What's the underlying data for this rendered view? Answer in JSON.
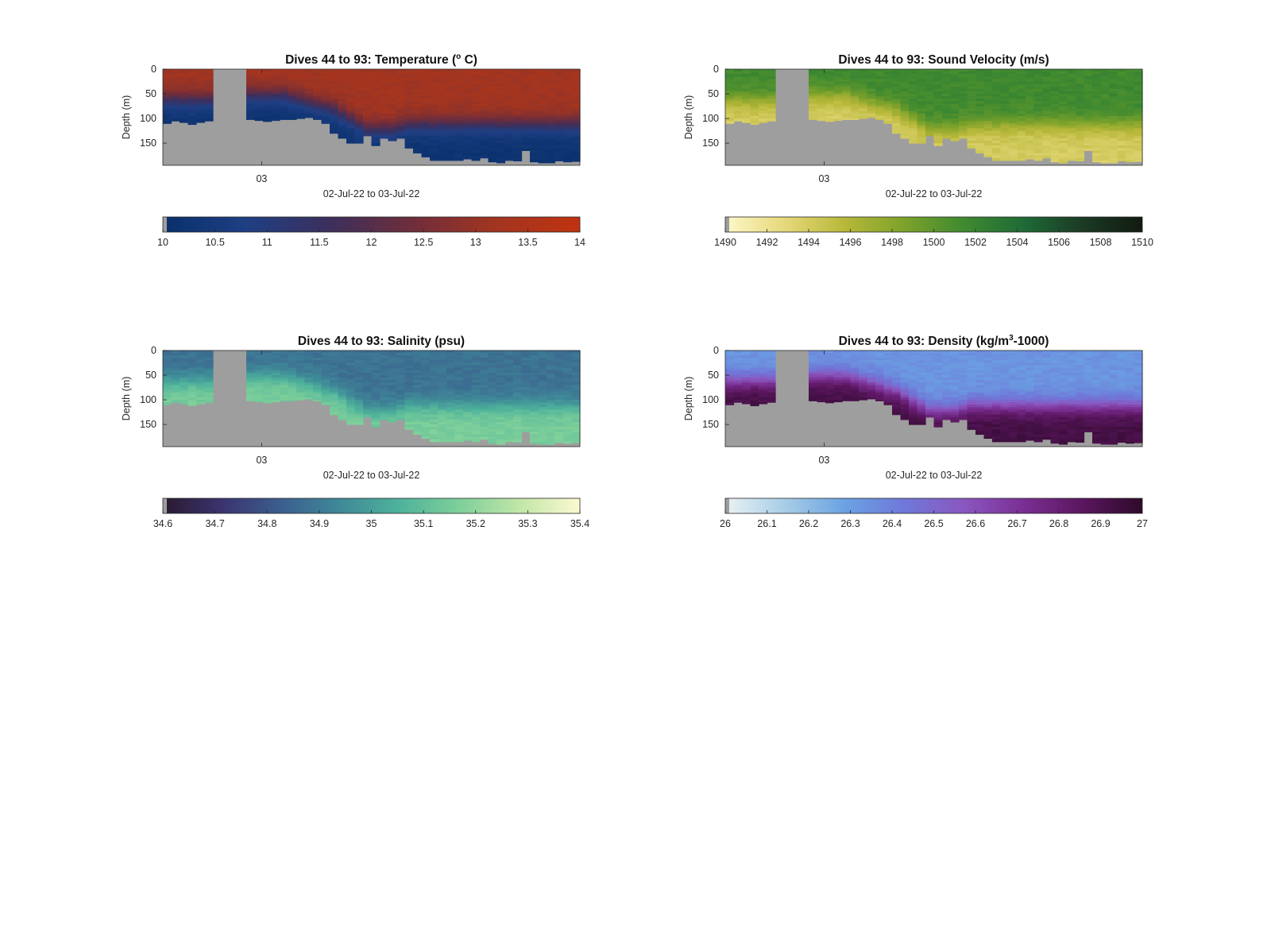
{
  "figure": {
    "background": "#ffffff",
    "land_color": "#9e9e9e"
  },
  "chart_data": [
    {
      "type": "heatmap",
      "id": "temperature",
      "title": "Dives 44 to 93: Temperature (",
      "title_sup": "o",
      "title_tail": " C)",
      "xlabel": "02-Jul-22 to 03-Jul-22",
      "x_tick_labels": [
        "03"
      ],
      "ylabel": "Depth (m)",
      "ylim": [
        0,
        195
      ],
      "y_ticks": [
        0,
        50,
        100,
        150
      ],
      "n_profiles": 50,
      "colorbar": {
        "clim": [
          10,
          14
        ],
        "ticks": [
          "10",
          "10.5",
          "11",
          "11.5",
          "12",
          "12.5",
          "13",
          "13.5",
          "14"
        ],
        "colors": [
          "#08306b",
          "#1f3f84",
          "#3c2f5c",
          "#6f2d3b",
          "#a33520",
          "#c0330f"
        ]
      },
      "field": {
        "surface": 13.2,
        "deep": 10.2,
        "thermocline": [
          60,
          60,
          60,
          60,
          60,
          60,
          60,
          60,
          60,
          55,
          50,
          50,
          50,
          50,
          50,
          55,
          60,
          65,
          70,
          75,
          80,
          90,
          100,
          110,
          120,
          120,
          120,
          120,
          115,
          110,
          110,
          110,
          110,
          110,
          110,
          110,
          110,
          110,
          110,
          110,
          110,
          110,
          110,
          110,
          110,
          110,
          110,
          110,
          110,
          110
        ],
        "gradient_width": 45
      }
    },
    {
      "type": "heatmap",
      "id": "sound-velocity",
      "title": "Dives 44 to 93: Sound Velocity (m/s)",
      "title_sup": "",
      "title_tail": "",
      "xlabel": "02-Jul-22 to 03-Jul-22",
      "x_tick_labels": [
        "03"
      ],
      "ylabel": "Depth (m)",
      "ylim": [
        0,
        195
      ],
      "y_ticks": [
        0,
        50,
        100,
        150
      ],
      "n_profiles": 50,
      "colorbar": {
        "clim": [
          1490,
          1510
        ],
        "ticks": [
          "1490",
          "1492",
          "1494",
          "1496",
          "1498",
          "1500",
          "1502",
          "1504",
          "1506",
          "1508",
          "1510"
        ],
        "colors": [
          "#fdf8c9",
          "#e6d87a",
          "#b8b83a",
          "#7da22a",
          "#3f8a30",
          "#1f6b36",
          "#1b3a24",
          "#101a10"
        ]
      },
      "field": {
        "surface": 1501.5,
        "deep": 1494.0,
        "thermocline": [
          60,
          60,
          60,
          60,
          60,
          60,
          60,
          60,
          60,
          55,
          50,
          50,
          50,
          50,
          50,
          55,
          60,
          65,
          70,
          75,
          80,
          90,
          100,
          110,
          120,
          120,
          120,
          120,
          115,
          110,
          110,
          110,
          110,
          110,
          110,
          110,
          110,
          110,
          110,
          110,
          110,
          110,
          110,
          110,
          110,
          110,
          110,
          110,
          110,
          110
        ],
        "gradient_width": 45
      }
    },
    {
      "type": "heatmap",
      "id": "salinity",
      "title": "Dives 44 to 93: Salinity (psu)",
      "title_sup": "",
      "title_tail": "",
      "xlabel": "02-Jul-22 to 03-Jul-22",
      "x_tick_labels": [
        "03"
      ],
      "ylabel": "Depth (m)",
      "ylim": [
        0,
        195
      ],
      "y_ticks": [
        0,
        50,
        100,
        150
      ],
      "n_profiles": 50,
      "colorbar": {
        "clim": [
          34.6,
          35.4
        ],
        "ticks": [
          "34.6",
          "34.7",
          "34.8",
          "34.9",
          "35",
          "35.1",
          "35.2",
          "35.3",
          "35.4"
        ],
        "colors": [
          "#2a1a2e",
          "#3b3470",
          "#3b5f8e",
          "#3f8a98",
          "#4fb39b",
          "#7fd09a",
          "#c2e6a8",
          "#fcf9d0"
        ]
      },
      "field": {
        "surface": 34.88,
        "deep": 35.16,
        "thermocline": [
          60,
          60,
          60,
          60,
          60,
          60,
          60,
          60,
          60,
          55,
          50,
          50,
          50,
          50,
          50,
          55,
          60,
          65,
          70,
          75,
          80,
          90,
          100,
          110,
          120,
          120,
          120,
          120,
          115,
          110,
          110,
          110,
          110,
          110,
          110,
          110,
          110,
          110,
          110,
          110,
          110,
          110,
          110,
          110,
          110,
          110,
          110,
          110,
          110,
          110
        ],
        "gradient_width": 45
      }
    },
    {
      "type": "heatmap",
      "id": "density",
      "title": "Dives 44 to 93: Density (kg/m",
      "title_sup": "3",
      "title_tail": "-1000)",
      "xlabel": "02-Jul-22 to 03-Jul-22",
      "x_tick_labels": [
        "03"
      ],
      "ylabel": "Depth (m)",
      "ylim": [
        0,
        195
      ],
      "y_ticks": [
        0,
        50,
        100,
        150
      ],
      "n_profiles": 50,
      "colorbar": {
        "clim": [
          26,
          27
        ],
        "ticks": [
          "26",
          "26.1",
          "26.2",
          "26.3",
          "26.4",
          "26.5",
          "26.6",
          "26.7",
          "26.8",
          "26.9",
          "27"
        ],
        "colors": [
          "#eaf2f4",
          "#a7cde6",
          "#6aa2e3",
          "#6f78d8",
          "#8a57c0",
          "#7a2f93",
          "#5a165e",
          "#2d0a2a"
        ]
      },
      "field": {
        "surface": 26.33,
        "deep": 26.93,
        "thermocline": [
          60,
          60,
          60,
          60,
          60,
          60,
          60,
          60,
          60,
          55,
          50,
          50,
          50,
          50,
          50,
          55,
          60,
          65,
          70,
          75,
          80,
          90,
          100,
          110,
          120,
          120,
          120,
          120,
          115,
          110,
          110,
          110,
          110,
          110,
          110,
          110,
          110,
          110,
          110,
          110,
          110,
          110,
          110,
          110,
          110,
          110,
          110,
          110,
          110,
          110
        ],
        "gradient_width": 45
      }
    }
  ],
  "profile_max_depth": [
    110,
    105,
    108,
    112,
    108,
    105,
    0,
    0,
    0,
    0,
    102,
    104,
    106,
    104,
    102,
    102,
    100,
    98,
    102,
    110,
    130,
    140,
    150,
    150,
    135,
    155,
    140,
    145,
    140,
    160,
    170,
    178,
    185,
    185,
    185,
    185,
    182,
    185,
    180,
    188,
    190,
    185,
    186,
    165,
    188,
    190,
    190,
    186,
    188,
    187
  ]
}
